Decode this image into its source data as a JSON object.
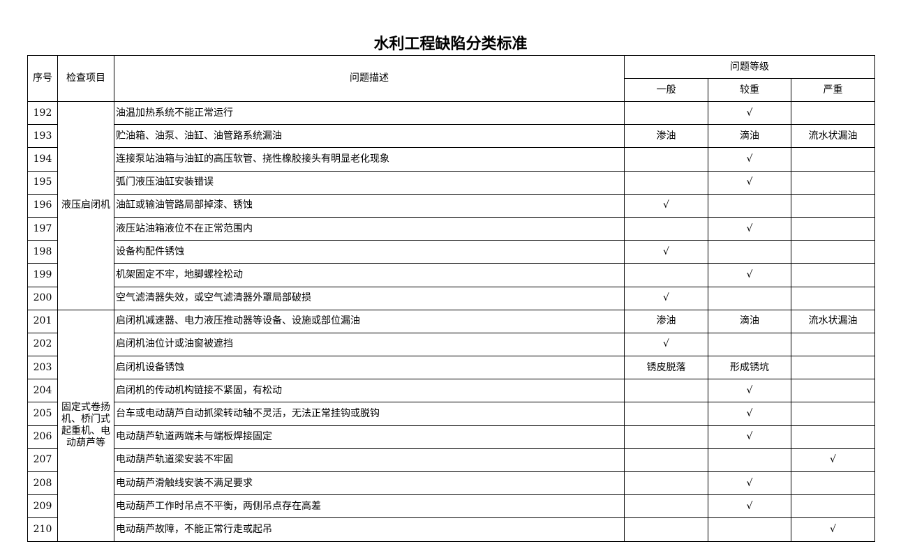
{
  "title": "水利工程缺陷分类标准",
  "headers": {
    "no": "序号",
    "item": "检查项目",
    "desc": "问题描述",
    "level": "问题等级",
    "general": "一般",
    "heavier": "较重",
    "serious": "严重"
  },
  "groups": [
    {
      "item": "液压启闭机",
      "rows": [
        {
          "no": "192",
          "desc": "油温加热系统不能正常运行",
          "general": "",
          "heavier": "√",
          "serious": ""
        },
        {
          "no": "193",
          "desc": "贮油箱、油泵、油缸、油管路系统漏油",
          "general": "渗油",
          "heavier": "滴油",
          "serious": "流水状漏油"
        },
        {
          "no": "194",
          "desc": "连接泵站油箱与油缸的高压软管、挠性橡胶接头有明显老化现象",
          "general": "",
          "heavier": "√",
          "serious": ""
        },
        {
          "no": "195",
          "desc": "弧门液压油缸安装错误",
          "general": "",
          "heavier": "√",
          "serious": ""
        },
        {
          "no": "196",
          "desc": "油缸或输油管路局部掉漆、锈蚀",
          "general": "√",
          "heavier": "",
          "serious": ""
        },
        {
          "no": "197",
          "desc": "液压站油箱液位不在正常范围内",
          "general": "",
          "heavier": "√",
          "serious": ""
        },
        {
          "no": "198",
          "desc": "设备构配件锈蚀",
          "general": "√",
          "heavier": "",
          "serious": ""
        },
        {
          "no": "199",
          "desc": "机架固定不牢，地脚螺栓松动",
          "general": "",
          "heavier": "√",
          "serious": ""
        },
        {
          "no": "200",
          "desc": "空气滤清器失效，或空气滤清器外罩局部破损",
          "general": "√",
          "heavier": "",
          "serious": ""
        }
      ]
    },
    {
      "item": "固定式卷扬机、桥门式起重机、电动葫芦等",
      "rows": [
        {
          "no": "201",
          "desc": "启闭机减速器、电力液压推动器等设备、设施或部位漏油",
          "general": "渗油",
          "heavier": "滴油",
          "serious": "流水状漏油"
        },
        {
          "no": "202",
          "desc": "启闭机油位计或油窗被遮挡",
          "general": "√",
          "heavier": "",
          "serious": ""
        },
        {
          "no": "203",
          "desc": "启闭机设备锈蚀",
          "general": "锈皮脱落",
          "heavier": "形成锈坑",
          "serious": ""
        },
        {
          "no": "204",
          "desc": "启闭机的传动机构链接不紧固，有松动",
          "general": "",
          "heavier": "√",
          "serious": ""
        },
        {
          "no": "205",
          "desc": "台车或电动葫芦自动抓梁转动轴不灵活，无法正常挂钩或脱钩",
          "general": "",
          "heavier": "√",
          "serious": ""
        },
        {
          "no": "206",
          "desc": "电动葫芦轨道两端未与端板焊接固定",
          "general": "",
          "heavier": "√",
          "serious": ""
        },
        {
          "no": "207",
          "desc": "电动葫芦轨道梁安装不牢固",
          "general": "",
          "heavier": "",
          "serious": "√"
        },
        {
          "no": "208",
          "desc": "电动葫芦滑触线安装不满足要求",
          "general": "",
          "heavier": "√",
          "serious": ""
        },
        {
          "no": "209",
          "desc": "电动葫芦工作时吊点不平衡，两侧吊点存在高差",
          "general": "",
          "heavier": "√",
          "serious": ""
        },
        {
          "no": "210",
          "desc": "电动葫芦故障，不能正常行走或起吊",
          "general": "",
          "heavier": "",
          "serious": "√"
        }
      ]
    }
  ]
}
